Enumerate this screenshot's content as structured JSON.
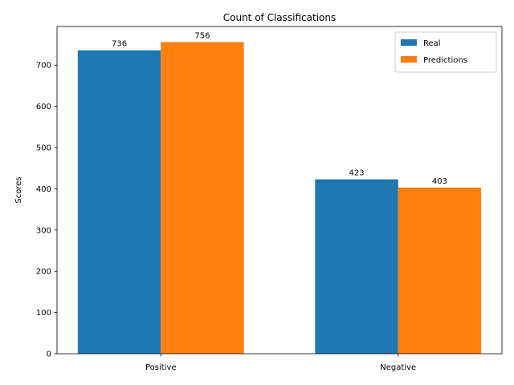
{
  "chart_data": {
    "type": "bar",
    "title": "Count of Classifications",
    "xlabel": "",
    "ylabel": "Scores",
    "categories": [
      "Positive",
      "Negative"
    ],
    "series": [
      {
        "name": "Real",
        "values": [
          736,
          423
        ],
        "color": "#1f77b4"
      },
      {
        "name": "Predictions",
        "values": [
          756,
          403
        ],
        "color": "#ff7f0e"
      }
    ],
    "ylim": [
      0,
      793.8
    ],
    "yticks": [
      0,
      100,
      200,
      300,
      400,
      500,
      600,
      700
    ],
    "legend_position": "top-right",
    "grid": false
  }
}
